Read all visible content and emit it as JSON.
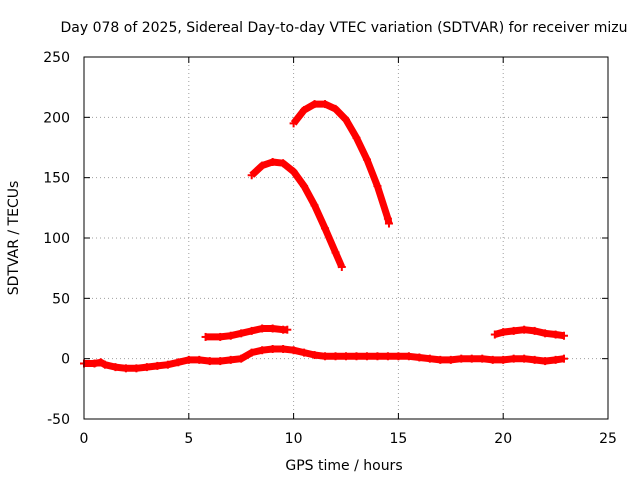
{
  "chart_data": {
    "type": "scatter",
    "title": "Day 078 of 2025, Sidereal Day-to-day VTEC variation (SDTVAR) for receiver mizu",
    "xlabel": "GPS time / hours",
    "ylabel": "SDTVAR / TECUs",
    "xlim": [
      0,
      25
    ],
    "ylim": [
      -50,
      250
    ],
    "xticks": [
      0,
      5,
      10,
      15,
      20,
      25
    ],
    "yticks": [
      -50,
      0,
      50,
      100,
      150,
      200,
      250
    ],
    "grid": true,
    "color": "#ff0000",
    "series": [
      {
        "name": "baseline",
        "points": [
          [
            0.0,
            -4
          ],
          [
            0.5,
            -4
          ],
          [
            0.8,
            -3
          ],
          [
            1.0,
            -5
          ],
          [
            1.5,
            -7
          ],
          [
            2.0,
            -8
          ],
          [
            2.5,
            -8
          ],
          [
            3.0,
            -7
          ],
          [
            3.5,
            -6
          ],
          [
            4.0,
            -5
          ],
          [
            4.5,
            -3
          ],
          [
            5.0,
            -1
          ],
          [
            5.5,
            -1
          ],
          [
            6.0,
            -2
          ],
          [
            6.5,
            -2
          ],
          [
            7.0,
            -1
          ],
          [
            7.5,
            0
          ],
          [
            8.0,
            5
          ],
          [
            8.5,
            7
          ],
          [
            9.0,
            8
          ],
          [
            9.5,
            8
          ],
          [
            10.0,
            7
          ],
          [
            10.5,
            5
          ],
          [
            11.0,
            3
          ],
          [
            11.5,
            2
          ],
          [
            12.0,
            2
          ],
          [
            12.5,
            2
          ],
          [
            13.0,
            2
          ],
          [
            13.5,
            2
          ],
          [
            14.0,
            2
          ],
          [
            14.5,
            2
          ],
          [
            15.0,
            2
          ],
          [
            15.5,
            2
          ],
          [
            16.0,
            1
          ],
          [
            16.5,
            0
          ],
          [
            17.0,
            -1
          ],
          [
            17.5,
            -1
          ],
          [
            18.0,
            0
          ],
          [
            18.5,
            0
          ],
          [
            19.0,
            0
          ],
          [
            19.5,
            -1
          ],
          [
            20.0,
            -1
          ],
          [
            20.5,
            0
          ],
          [
            21.0,
            0
          ],
          [
            21.5,
            -1
          ],
          [
            22.0,
            -2
          ],
          [
            22.5,
            -1
          ],
          [
            22.9,
            0
          ]
        ]
      },
      {
        "name": "arc-6-10",
        "points": [
          [
            5.8,
            18
          ],
          [
            6.5,
            18
          ],
          [
            7.0,
            19
          ],
          [
            7.5,
            21
          ],
          [
            8.0,
            23
          ],
          [
            8.5,
            25
          ],
          [
            9.0,
            25
          ],
          [
            9.5,
            24
          ],
          [
            9.7,
            24
          ]
        ]
      },
      {
        "name": "arc-20-23",
        "points": [
          [
            19.6,
            20
          ],
          [
            20.0,
            22
          ],
          [
            20.5,
            23
          ],
          [
            21.0,
            24
          ],
          [
            21.5,
            23
          ],
          [
            22.0,
            21
          ],
          [
            22.5,
            20
          ],
          [
            22.9,
            19
          ]
        ]
      },
      {
        "name": "arc-8-12",
        "points": [
          [
            8.0,
            152
          ],
          [
            8.5,
            160
          ],
          [
            9.0,
            163
          ],
          [
            9.5,
            162
          ],
          [
            10.0,
            155
          ],
          [
            10.5,
            143
          ],
          [
            11.0,
            127
          ],
          [
            11.5,
            108
          ],
          [
            12.0,
            88
          ],
          [
            12.3,
            76
          ]
        ]
      },
      {
        "name": "arc-10-15",
        "points": [
          [
            10.0,
            195
          ],
          [
            10.5,
            206
          ],
          [
            11.0,
            211
          ],
          [
            11.5,
            211
          ],
          [
            12.0,
            207
          ],
          [
            12.5,
            198
          ],
          [
            13.0,
            183
          ],
          [
            13.5,
            165
          ],
          [
            14.0,
            143
          ],
          [
            14.5,
            116
          ],
          [
            14.55,
            112
          ]
        ]
      }
    ]
  }
}
